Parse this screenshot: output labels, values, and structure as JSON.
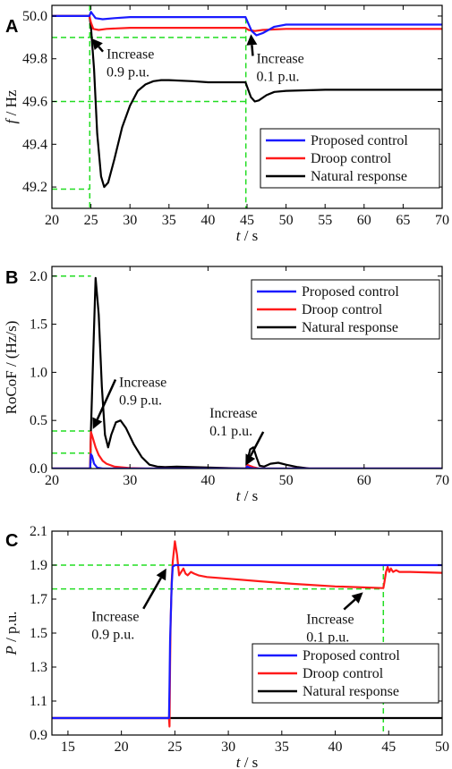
{
  "chart_data": [
    {
      "type": "line",
      "panel": "A",
      "xlabel": {
        "var": "t",
        "unit": " / s"
      },
      "ylabel": {
        "var": "f",
        "unit": " / Hz"
      },
      "xlim": [
        20,
        70
      ],
      "ylim": [
        49.1,
        50.05
      ],
      "xticks": [
        20,
        25,
        30,
        35,
        40,
        45,
        50,
        55,
        60,
        65,
        70
      ],
      "yticks": [
        49.2,
        49.4,
        49.6,
        49.8,
        50.0
      ],
      "ytick_labels": [
        "49.2",
        "49.4",
        "49.6",
        "49.8",
        "50.0"
      ],
      "legend_position": "lower-right",
      "series": [
        {
          "name": "Proposed control",
          "color": "#1a1aff",
          "x": [
            20,
            24.8,
            25.0,
            25.2,
            25.6,
            26.5,
            28,
            30,
            35,
            40,
            44.8,
            45.1,
            45.6,
            46.2,
            47,
            48.5,
            50,
            55,
            60,
            70
          ],
          "y": [
            50.0,
            50.0,
            50.02,
            50.01,
            49.99,
            49.985,
            49.99,
            49.995,
            49.995,
            49.995,
            49.995,
            49.97,
            49.93,
            49.91,
            49.92,
            49.95,
            49.96,
            49.96,
            49.96,
            49.96
          ]
        },
        {
          "name": "Droop control",
          "color": "#ff1a1a",
          "x": [
            20,
            24.8,
            25.0,
            25.3,
            26,
            27,
            30,
            35,
            40,
            44.8,
            45.2,
            46,
            47,
            50,
            55,
            60,
            70
          ],
          "y": [
            50.0,
            50.0,
            49.97,
            49.94,
            49.935,
            49.94,
            49.945,
            49.945,
            49.945,
            49.945,
            49.935,
            49.93,
            49.935,
            49.94,
            49.94,
            49.94,
            49.94
          ]
        },
        {
          "name": "Natural response",
          "color": "#000000",
          "x": [
            20,
            24.8,
            25.0,
            25.4,
            25.8,
            26.3,
            26.7,
            27.2,
            28,
            29,
            30,
            31,
            32,
            33,
            34,
            35,
            38,
            40,
            44.8,
            45.1,
            45.5,
            46,
            46.5,
            47.5,
            48.5,
            50,
            55,
            60,
            70
          ],
          "y": [
            50.0,
            50.0,
            49.95,
            49.75,
            49.45,
            49.25,
            49.2,
            49.22,
            49.33,
            49.48,
            49.58,
            49.65,
            49.68,
            49.695,
            49.7,
            49.7,
            49.695,
            49.69,
            49.69,
            49.66,
            49.62,
            49.6,
            49.605,
            49.63,
            49.645,
            49.65,
            49.655,
            49.655,
            49.655
          ]
        }
      ],
      "guides": {
        "h": [
          50.0,
          49.9,
          49.6,
          49.19
        ],
        "v": [
          24.85,
          44.85
        ]
      },
      "annotations": [
        {
          "lines": [
            "Increase",
            "0.9 p.u."
          ],
          "text_at": [
            27.0,
            49.8
          ],
          "arrow_to": [
            25.1,
            49.895
          ]
        },
        {
          "lines": [
            "Increase",
            "0.1 p.u."
          ],
          "text_at": [
            46.2,
            49.78
          ],
          "arrow_to": [
            45.5,
            49.915
          ]
        }
      ]
    },
    {
      "type": "line",
      "panel": "B",
      "xlabel": {
        "var": "t",
        "unit": " / s"
      },
      "ylabel": {
        "var": "",
        "unit": "RoCoF / (Hz/s)"
      },
      "xlim": [
        20,
        70
      ],
      "ylim": [
        0,
        2.1
      ],
      "xticks": [
        20,
        30,
        40,
        50,
        60,
        70
      ],
      "yticks": [
        0,
        0.5,
        1.0,
        1.5,
        2.0
      ],
      "ytick_labels": [
        "0.0",
        "0.5",
        "1.0",
        "1.5",
        "2.0"
      ],
      "legend_position": "top-right",
      "series": [
        {
          "name": "Proposed control",
          "color": "#1a1aff",
          "x": [
            20,
            24.9,
            25.0,
            25.15,
            25.4,
            25.8,
            26.5,
            28,
            30,
            44.9,
            45.0,
            45.2,
            45.5,
            46,
            47,
            70
          ],
          "y": [
            0,
            0,
            0.15,
            0.13,
            0.05,
            0.01,
            0,
            0,
            0,
            0,
            0.02,
            0.015,
            0.005,
            0,
            0,
            0
          ]
        },
        {
          "name": "Droop control",
          "color": "#ff1a1a",
          "x": [
            20,
            24.9,
            25.0,
            25.2,
            25.6,
            26.0,
            26.5,
            27,
            28,
            30,
            32,
            44.9,
            45.0,
            45.3,
            45.8,
            46.5,
            70
          ],
          "y": [
            0,
            0,
            0.38,
            0.33,
            0.22,
            0.14,
            0.08,
            0.05,
            0.02,
            0.005,
            0,
            0,
            0.04,
            0.03,
            0.015,
            0,
            0
          ]
        },
        {
          "name": "Natural response",
          "color": "#000000",
          "x": [
            20,
            24.9,
            25.0,
            25.3,
            25.6,
            26.0,
            26.4,
            26.8,
            27.2,
            27.6,
            28.2,
            28.8,
            29.5,
            30.5,
            31.5,
            32.5,
            33.5,
            34.5,
            36,
            40,
            44.9,
            45.1,
            45.4,
            45.8,
            46.2,
            46.6,
            47.2,
            48.0,
            49.0,
            50.0,
            51.5,
            53,
            70
          ],
          "y": [
            0,
            0,
            0.4,
            1.2,
            1.98,
            1.6,
            0.85,
            0.35,
            0.22,
            0.35,
            0.48,
            0.5,
            0.42,
            0.25,
            0.12,
            0.04,
            0.02,
            0.015,
            0.02,
            0.01,
            0.0,
            0.1,
            0.2,
            0.22,
            0.12,
            0.03,
            0.02,
            0.05,
            0.06,
            0.04,
            0.015,
            0.0,
            0.0
          ]
        }
      ],
      "guides": {
        "h": [
          2.0,
          0.39,
          0.16
        ],
        "v": [
          25.0
        ]
      },
      "annotations": [
        {
          "lines": [
            "Increase",
            "0.9 p.u."
          ],
          "text_at": [
            28.6,
            0.85
          ],
          "arrow_to": [
            25.25,
            0.41
          ]
        },
        {
          "lines": [
            "Increase",
            "0.1 p.u."
          ],
          "text_at": [
            40.2,
            0.53
          ],
          "arrow_to": [
            44.8,
            0.03
          ]
        }
      ]
    },
    {
      "type": "line",
      "panel": "C",
      "xlabel": {
        "var": "t",
        "unit": " / s"
      },
      "ylabel": {
        "var": "P",
        "unit": " / p.u."
      },
      "xlim": [
        13.5,
        50
      ],
      "ylim": [
        0.9,
        2.1
      ],
      "xticks": [
        15,
        20,
        25,
        30,
        35,
        40,
        45,
        50
      ],
      "yticks": [
        0.9,
        1.1,
        1.3,
        1.5,
        1.7,
        1.9,
        2.1
      ],
      "ytick_labels": [
        "0.9",
        "1.1",
        "1.3",
        "1.5",
        "1.7",
        "1.9",
        "2.1"
      ],
      "legend_position": "bottom-right",
      "series": [
        {
          "name": "Proposed control",
          "color": "#1a1aff",
          "x": [
            13.5,
            24.45,
            24.5,
            24.55,
            24.62,
            24.7,
            24.8,
            25,
            30,
            40,
            44.5,
            44.6,
            45,
            50
          ],
          "y": [
            1.0,
            1.0,
            1.2,
            1.45,
            1.6,
            1.78,
            1.89,
            1.9,
            1.9,
            1.9,
            1.9,
            1.9,
            1.9,
            1.9
          ]
        },
        {
          "name": "Droop control",
          "color": "#ff1a1a",
          "x": [
            13.5,
            24.45,
            24.5,
            24.55,
            24.6,
            24.7,
            24.8,
            25.0,
            25.2,
            25.4,
            25.6,
            25.8,
            26.0,
            26.2,
            26.5,
            26.8,
            27.2,
            28,
            30,
            33,
            36,
            40,
            44.5,
            44.6,
            44.75,
            44.9,
            45.05,
            45.2,
            45.4,
            45.7,
            46,
            47,
            50
          ],
          "y": [
            1.0,
            1.0,
            0.95,
            1.3,
            1.55,
            1.8,
            1.92,
            2.04,
            1.96,
            1.84,
            1.86,
            1.88,
            1.85,
            1.84,
            1.86,
            1.85,
            1.84,
            1.83,
            1.82,
            1.805,
            1.79,
            1.775,
            1.765,
            1.8,
            1.86,
            1.89,
            1.86,
            1.88,
            1.86,
            1.87,
            1.86,
            1.86,
            1.855
          ]
        },
        {
          "name": "Natural response",
          "color": "#000000",
          "x": [
            13.5,
            50
          ],
          "y": [
            1.0,
            1.0
          ]
        }
      ],
      "guides": {
        "h": [
          1.9,
          1.76
        ],
        "v": [
          44.5
        ]
      },
      "annotations": [
        {
          "lines": [
            "Increase",
            "0.9 p.u."
          ],
          "text_at": [
            17.2,
            1.57
          ],
          "arrow_to": [
            24.2,
            1.88
          ]
        },
        {
          "lines": [
            "Increase",
            "0.1 p.u."
          ],
          "text_at": [
            37.3,
            1.555
          ],
          "arrow_to": [
            42.6,
            1.74
          ]
        }
      ]
    }
  ]
}
